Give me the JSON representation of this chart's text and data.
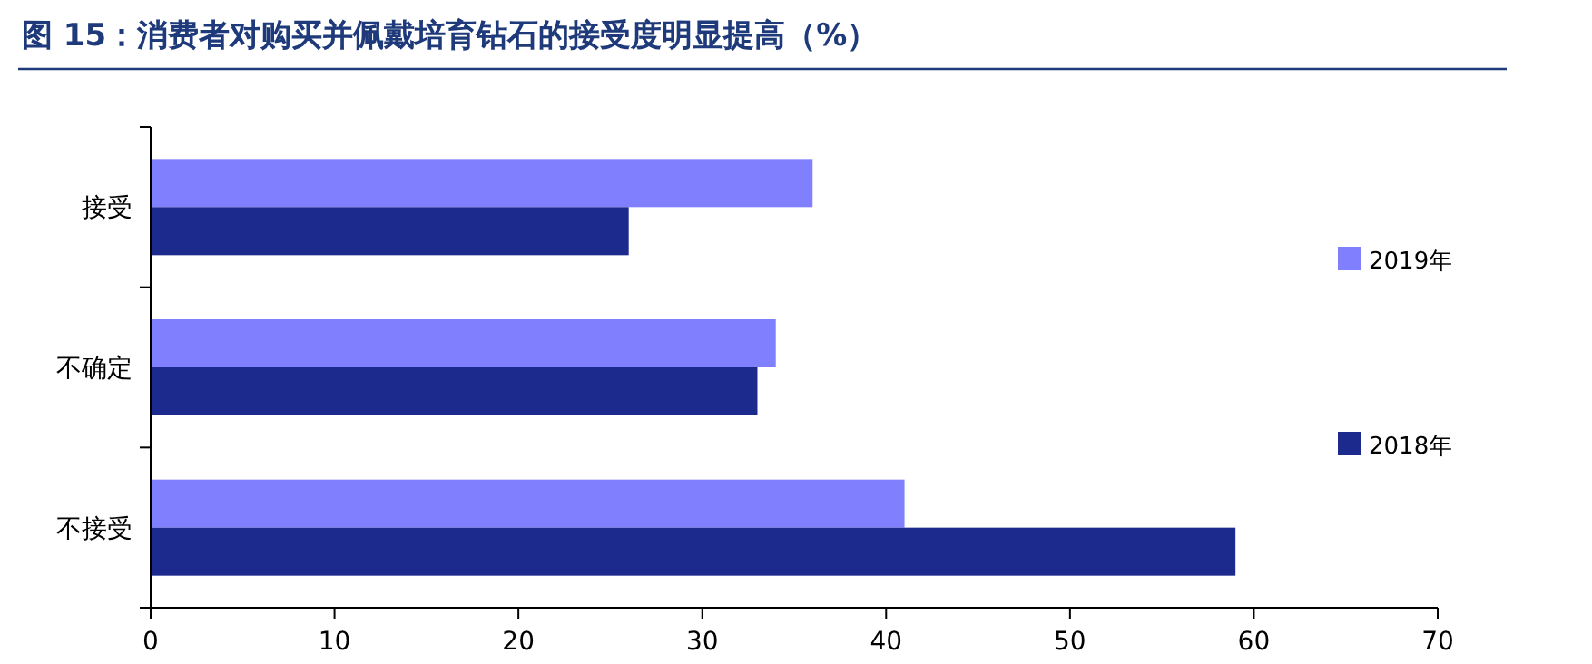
{
  "chart_data": {
    "type": "bar",
    "orientation": "horizontal",
    "title": "图 15：消费者对购买并佩戴培育钻石的接受度明显提高（%）",
    "categories": [
      "接受",
      "不确定",
      "不接受"
    ],
    "series": [
      {
        "name": "2019年",
        "color": "#8080ff",
        "values": [
          36,
          34,
          41
        ]
      },
      {
        "name": "2018年",
        "color": "#1c2a8e",
        "values": [
          26,
          33,
          59
        ]
      }
    ],
    "xlim": [
      0,
      70
    ],
    "xticks": [
      0,
      10,
      20,
      30,
      40,
      50,
      60,
      70
    ],
    "grid": false,
    "legend": "right"
  }
}
